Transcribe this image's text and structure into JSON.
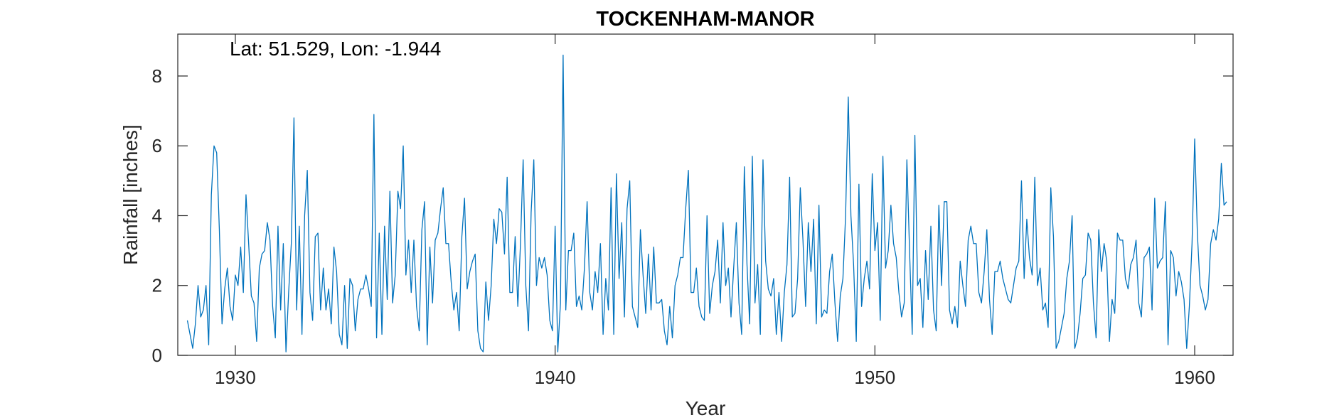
{
  "chart_data": {
    "type": "line",
    "title": "TOCKENHAM-MANOR",
    "annotation": "Lat: 51.529, Lon: -1.944",
    "xlabel": "Year",
    "ylabel": "Rainfall [inches]",
    "xlim": [
      1928.2,
      1961.2
    ],
    "ylim": [
      0,
      9.2
    ],
    "xticks": [
      1930,
      1940,
      1950,
      1960
    ],
    "xtick_labels": [
      "1930",
      "1940",
      "1950",
      "1960"
    ],
    "yticks": [
      0,
      2,
      4,
      6,
      8
    ],
    "ytick_labels": [
      "0",
      "2",
      "4",
      "6",
      "8"
    ],
    "grid": false,
    "series_color": "#0072BD",
    "x_start": 1928.5,
    "x_step": 0.0833333,
    "series": [
      {
        "values": [
          1.0,
          0.6,
          0.2,
          0.9,
          2.0,
          1.1,
          1.3,
          2.0,
          0.3,
          4.6,
          6.0,
          5.8,
          3.6,
          0.9,
          1.9,
          2.5,
          1.4,
          1.0,
          2.3,
          2.0,
          3.1,
          1.8,
          4.6,
          3.2,
          1.7,
          1.5,
          0.4,
          2.5,
          2.9,
          3.0,
          3.8,
          3.3,
          1.4,
          0.5,
          3.7,
          1.3,
          3.2,
          0.1,
          1.8,
          3.2,
          6.8,
          1.3,
          3.7,
          0.6,
          4.0,
          5.3,
          1.8,
          1.0,
          3.4,
          3.5,
          1.3,
          2.5,
          1.3,
          1.9,
          0.9,
          3.1,
          2.4,
          0.6,
          0.3,
          2.0,
          0.2,
          2.2,
          2.0,
          0.7,
          1.6,
          1.9,
          1.9,
          2.3,
          1.9,
          1.4,
          6.9,
          0.5,
          3.5,
          0.6,
          3.7,
          1.6,
          4.7,
          1.5,
          2.3,
          4.7,
          4.2,
          6.0,
          2.3,
          3.3,
          1.8,
          3.3,
          1.4,
          0.7,
          3.6,
          4.4,
          0.3,
          3.1,
          1.5,
          3.3,
          3.5,
          4.2,
          4.8,
          3.2,
          3.2,
          2.1,
          1.3,
          1.8,
          0.7,
          3.4,
          4.5,
          1.9,
          2.4,
          2.7,
          2.9,
          0.7,
          0.2,
          0.1,
          2.1,
          1.0,
          2.0,
          3.9,
          3.2,
          4.2,
          4.1,
          2.9,
          5.1,
          1.8,
          1.8,
          3.4,
          1.4,
          3.2,
          5.6,
          2.0,
          0.7,
          4.1,
          5.6,
          2.0,
          2.8,
          2.5,
          2.8,
          2.3,
          1.0,
          0.7,
          3.7,
          0.1,
          1.5,
          8.6,
          1.3,
          3.0,
          3.0,
          3.5,
          1.4,
          1.7,
          1.3,
          2.5,
          4.4,
          1.8,
          1.3,
          2.4,
          1.8,
          3.2,
          0.6,
          2.2,
          1.3,
          4.8,
          0.6,
          5.2,
          2.2,
          3.8,
          1.1,
          4.2,
          5.0,
          1.4,
          1.1,
          0.8,
          3.6,
          2.3,
          1.2,
          2.9,
          1.3,
          3.1,
          1.5,
          1.5,
          1.6,
          0.7,
          0.3,
          1.4,
          0.5,
          2.0,
          2.3,
          2.8,
          2.8,
          4.2,
          5.3,
          1.8,
          1.8,
          2.5,
          1.4,
          1.1,
          1.0,
          4.0,
          1.2,
          2.0,
          2.4,
          3.3,
          1.5,
          3.8,
          2.0,
          2.5,
          1.1,
          2.5,
          3.8,
          1.5,
          0.6,
          5.4,
          2.6,
          0.9,
          5.7,
          1.5,
          2.6,
          0.6,
          5.6,
          2.7,
          1.9,
          1.7,
          2.2,
          0.6,
          1.8,
          0.4,
          1.8,
          2.6,
          5.1,
          1.1,
          1.2,
          2.2,
          4.8,
          3.3,
          1.4,
          3.8,
          2.4,
          3.9,
          0.9,
          4.3,
          1.1,
          1.3,
          1.2,
          2.4,
          2.9,
          1.5,
          0.4,
          1.7,
          2.2,
          4.0,
          7.4,
          4.0,
          2.6,
          0.4,
          4.9,
          1.4,
          2.2,
          2.7,
          1.9,
          5.2,
          3.0,
          3.8,
          1.0,
          5.7,
          2.5,
          3.0,
          4.3,
          3.2,
          2.8,
          1.8,
          1.1,
          1.5,
          5.6,
          3.0,
          0.6,
          6.3,
          2.0,
          2.2,
          0.8,
          3.0,
          1.6,
          3.7,
          1.3,
          0.7,
          4.3,
          2.0,
          4.4,
          4.4,
          1.3,
          0.9,
          1.4,
          0.8,
          2.7,
          2.0,
          1.4,
          3.3,
          3.7,
          3.2,
          3.2,
          1.8,
          1.5,
          2.4,
          3.6,
          1.6,
          0.6,
          2.4,
          2.4,
          2.7,
          2.2,
          1.9,
          1.6,
          1.5,
          2.0,
          2.5,
          2.7,
          5.0,
          2.2,
          3.9,
          2.8,
          2.3,
          5.1,
          2.0,
          2.5,
          1.3,
          1.5,
          0.8,
          4.8,
          3.4,
          0.2,
          0.4,
          0.8,
          1.2,
          2.2,
          2.7,
          4.0,
          0.2,
          0.5,
          1.2,
          2.2,
          2.3,
          3.5,
          3.3,
          1.5,
          0.5,
          3.6,
          2.4,
          3.2,
          2.7,
          0.4,
          1.6,
          1.2,
          3.5,
          3.3,
          3.3,
          2.2,
          1.9,
          2.6,
          2.8,
          3.3,
          1.5,
          1.1,
          2.8,
          2.9,
          3.1,
          1.3,
          4.5,
          2.5,
          2.7,
          2.8,
          4.4,
          0.3,
          3.0,
          2.8,
          1.7,
          2.4,
          2.1,
          1.6,
          0.2,
          1.4,
          3.2,
          6.2,
          3.5,
          2.0,
          1.7,
          1.3,
          1.6,
          3.2,
          3.6,
          3.3,
          3.9,
          5.5,
          4.3,
          4.4
        ]
      }
    ]
  }
}
